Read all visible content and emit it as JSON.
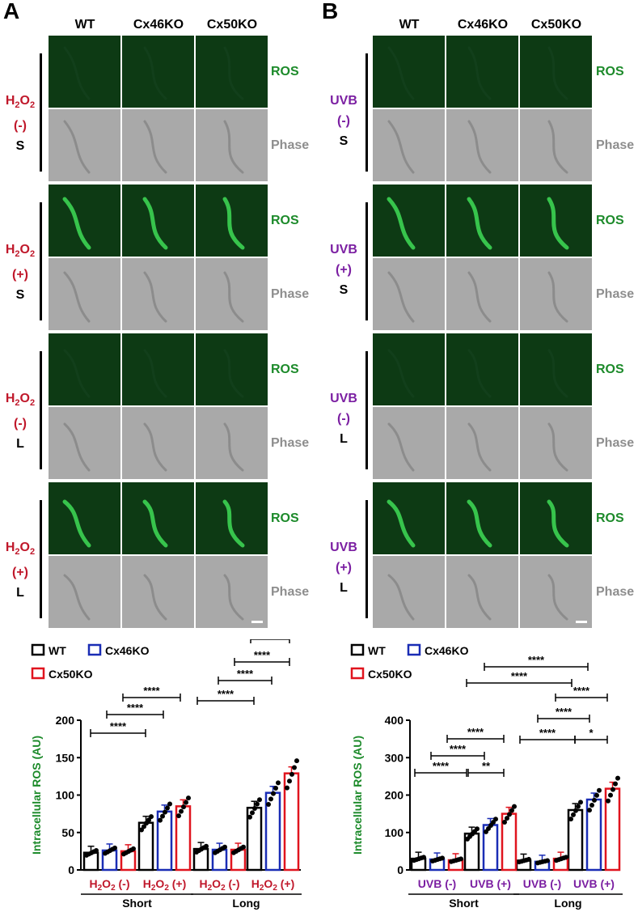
{
  "panels": [
    {
      "letter": "A",
      "columns": [
        "WT",
        "Cx46KO",
        "Cx50KO"
      ],
      "blocks": [
        {
          "agent": "H",
          "sub": "2",
          "o": "O",
          "subo": "2",
          "state": "(-)",
          "size": "S",
          "agent_color": "#c0182b"
        },
        {
          "agent": "H",
          "sub": "2",
          "o": "O",
          "subo": "2",
          "state": "(+)",
          "size": "S",
          "agent_color": "#c0182b"
        },
        {
          "agent": "H",
          "sub": "2",
          "o": "O",
          "subo": "2",
          "state": "(-)",
          "size": "L",
          "agent_color": "#c0182b"
        },
        {
          "agent": "H",
          "sub": "2",
          "o": "O",
          "subo": "2",
          "state": "(+)",
          "size": "L",
          "agent_color": "#c0182b"
        }
      ]
    },
    {
      "letter": "B",
      "columns": [
        "WT",
        "Cx46KO",
        "Cx50KO"
      ],
      "blocks": [
        {
          "agent": "UVB",
          "sub": "",
          "o": "",
          "subo": "",
          "state": "(-)",
          "size": "S",
          "agent_color": "#7b1fa2"
        },
        {
          "agent": "UVB",
          "sub": "",
          "o": "",
          "subo": "",
          "state": "(+)",
          "size": "S",
          "agent_color": "#7b1fa2"
        },
        {
          "agent": "UVB",
          "sub": "",
          "o": "",
          "subo": "",
          "state": "(-)",
          "size": "L",
          "agent_color": "#7b1fa2"
        },
        {
          "agent": "UVB",
          "sub": "",
          "o": "",
          "subo": "",
          "state": "(+)",
          "size": "L",
          "agent_color": "#7b1fa2"
        }
      ]
    }
  ],
  "labels": {
    "ros": "ROS",
    "phase": "Phase"
  },
  "colors": {
    "ros_text": "#1c8a2a",
    "phase_text": "#8e8e8e",
    "h2o2": "#c0182b",
    "uvb": "#7b1fa2",
    "wt": "#000000",
    "cx46": "#1a2db5",
    "cx50": "#e0141e"
  },
  "chart_data": [
    {
      "type": "bar",
      "ylabel": "Intracellular ROS (AU)",
      "ylim": [
        0,
        200
      ],
      "yticks": [
        0,
        50,
        100,
        150,
        200
      ],
      "legend": [
        "WT",
        "Cx46KO",
        "Cx50KO"
      ],
      "categories": [
        "H2O2 (-) Short",
        "H2O2 (+) Short",
        "H2O2 (-) Long",
        "H2O2 (+) Long"
      ],
      "group_labels": [
        "Short",
        "Long"
      ],
      "series": [
        {
          "name": "WT",
          "values": [
            23,
            63,
            28,
            83
          ]
        },
        {
          "name": "Cx46KO",
          "values": [
            26,
            78,
            27,
            103
          ]
        },
        {
          "name": "Cx50KO",
          "values": [
            25,
            85,
            27,
            129
          ]
        }
      ],
      "significance": [
        "****",
        "****",
        "****",
        "****",
        "****",
        "****",
        "****",
        "**",
        "***"
      ]
    },
    {
      "type": "bar",
      "ylabel": "Intracellular ROS (AU)",
      "ylim": [
        0,
        400
      ],
      "yticks": [
        0,
        100,
        200,
        300,
        400
      ],
      "legend": [
        "WT",
        "Cx46KO",
        "Cx50KO"
      ],
      "categories": [
        "UVB (-) Short",
        "UVB (+) Short",
        "UVB (-) Long",
        "UVB (+) Long"
      ],
      "group_labels": [
        "Short",
        "Long"
      ],
      "series": [
        {
          "name": "WT",
          "values": [
            30,
            97,
            25,
            160
          ]
        },
        {
          "name": "Cx46KO",
          "values": [
            28,
            120,
            22,
            188
          ]
        },
        {
          "name": "Cx50KO",
          "values": [
            26,
            150,
            30,
            217
          ]
        }
      ],
      "significance": [
        "****",
        "****",
        "****",
        "**",
        "****",
        "****",
        "*",
        "****",
        "****",
        "****"
      ]
    }
  ]
}
